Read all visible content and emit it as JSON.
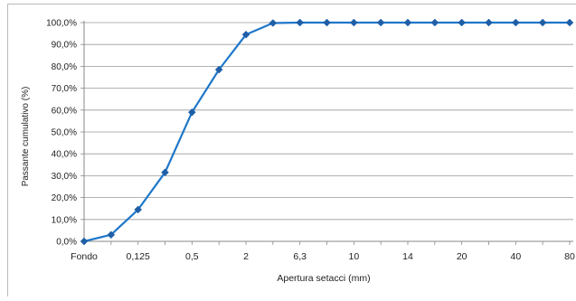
{
  "chart_data": {
    "type": "line",
    "title": "",
    "xlabel": "Apertura setacci (mm)",
    "ylabel": "Passante cumulativo (%)",
    "categories": [
      "Fondo",
      "",
      "0,125",
      "",
      "0,5",
      "",
      "2",
      "",
      "6,3",
      "",
      "10",
      "",
      "14",
      "",
      "20",
      "",
      "40",
      "",
      "80"
    ],
    "series": [
      {
        "values": [
          0.0,
          3.0,
          14.5,
          31.5,
          59.0,
          78.5,
          94.5,
          99.8,
          100.0,
          100.0,
          100.0,
          100.0,
          100.0,
          100.0,
          100.0,
          100.0,
          100.0,
          100.0,
          100.0
        ]
      }
    ],
    "ylim": [
      0,
      100
    ],
    "yticks": [
      "0,0%",
      "10,0%",
      "20,0%",
      "30,0%",
      "40,0%",
      "50,0%",
      "60,0%",
      "70,0%",
      "80,0%",
      "90,0%",
      "100,0%"
    ],
    "grid": true,
    "legend": "none",
    "colors": {
      "line": "#1f77c9",
      "marker": "#1f5fa8",
      "grid": "#9a9a9a",
      "axis": "#888888"
    }
  }
}
